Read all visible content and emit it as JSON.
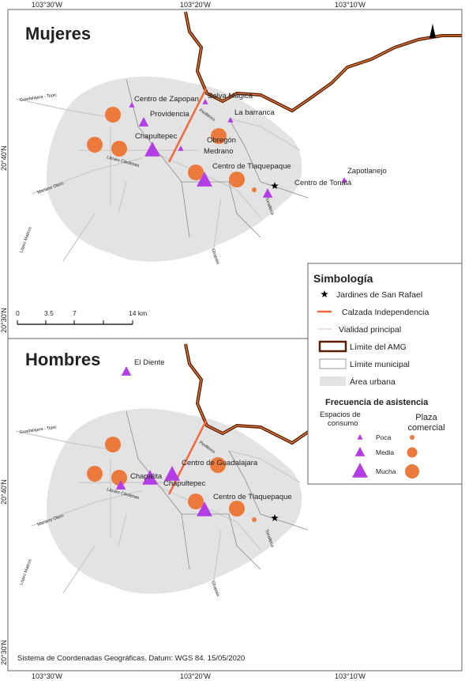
{
  "coordinates": {
    "top": [
      "103°30'W",
      "103°20'W",
      "103°10'W"
    ],
    "bottom": [
      "103°30'W",
      "103°20'W",
      "103°10'W"
    ],
    "left": [
      "20°40'N",
      "20°30'N"
    ]
  },
  "panels": [
    {
      "title": "Mujeres",
      "places": [
        "Centro de Zapopan",
        "Selva Mágica",
        "Providencia",
        "La barranca",
        "Obregón",
        "Chapultepec",
        "Medrano",
        "Centro de Tlaquepaque",
        "Zapotlanejo",
        "Centro de Tonalá"
      ],
      "roads": [
        "Guadalajara - Tepic",
        "Periférico",
        "Mariano Otero",
        "López Mateos",
        "Lázaro Cárdenas",
        "Chapala",
        "Tonalteca"
      ],
      "scale": [
        "0",
        "3.5",
        "7",
        "14 km"
      ]
    },
    {
      "title": "Hombres",
      "places": [
        "El Diente",
        "Centro de Guadalajara",
        "Chapalita",
        "Chapultepec",
        "Centro de Tlaquepaque"
      ],
      "roads": [
        "Guadalajara - Tepic",
        "Periférico",
        "Mariano Otero",
        "López Mateos",
        "Lázaro Cárdenas",
        "Chapala",
        "Tonalteca"
      ]
    }
  ],
  "legend": {
    "title": "Simbología",
    "items": [
      "Jardines de San Rafael",
      "Calzada Independencia",
      "Vialidad principal",
      "Límite del AMG",
      "Límite municipal",
      "Área urbana"
    ],
    "frequency_title": "Frecuencia de asistencia",
    "consumption": "Espacios de consumo",
    "mall": "Plaza comercial",
    "levels": [
      "Poca",
      "Media",
      "Mucha"
    ]
  },
  "footer": "Sistema de Coordenadas Geográficas. Datum: WGS 84. 15/05/2020"
}
